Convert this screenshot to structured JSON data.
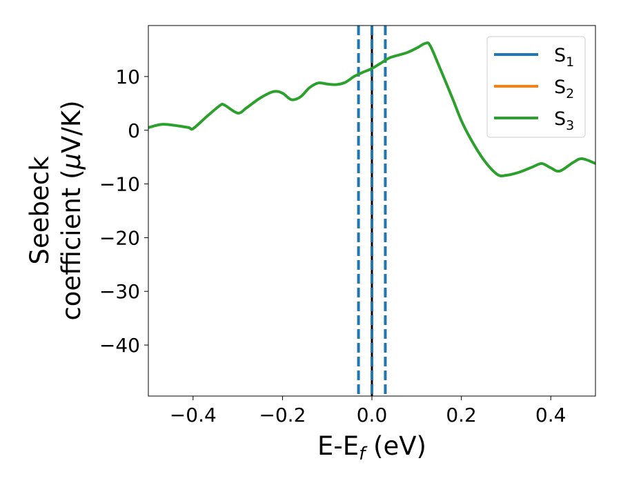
{
  "chart_data": {
    "type": "line",
    "title": "",
    "xlabel": {
      "main": "E-E",
      "sub": "f",
      "tail": " (eV)"
    },
    "ylabel": {
      "line1": "Seebeck",
      "line2_pre": "coefficient  (",
      "line2_mu": "μ",
      "line2_post": "V/K)"
    },
    "xlim": [
      -0.5,
      0.5
    ],
    "ylim": [
      -49.5,
      19.5
    ],
    "xticks": [
      -0.4,
      -0.2,
      0.0,
      0.2,
      0.4
    ],
    "xtick_labels": [
      "−0.4",
      "−0.2",
      "0.0",
      "0.2",
      "0.4"
    ],
    "yticks": [
      10,
      0,
      -10,
      -20,
      -30,
      -40
    ],
    "ytick_labels": [
      "10",
      "0",
      "−10",
      "−20",
      "−30",
      "−40"
    ],
    "grid": false,
    "legend_position": "top-right",
    "vertical_lines": [
      {
        "x": 0.0,
        "color": "#000000",
        "style": "solid"
      },
      {
        "x": -0.03,
        "color": "#1f77b4",
        "style": "dashed"
      },
      {
        "x": 0.0,
        "color": "#1f77b4",
        "style": "dashed"
      },
      {
        "x": 0.03,
        "color": "#1f77b4",
        "style": "dashed"
      }
    ],
    "legend": [
      {
        "base": "S",
        "sub": "1",
        "color": "#1f77b4"
      },
      {
        "base": "S",
        "sub": "2",
        "color": "#ff7f0e"
      },
      {
        "base": "S",
        "sub": "3",
        "color": "#2ca02c"
      }
    ],
    "series": [
      {
        "name": "S3",
        "color": "#2ca02c",
        "x": [
          -0.5,
          -0.47,
          -0.44,
          -0.41,
          -0.4,
          -0.37,
          -0.34,
          -0.33,
          -0.3,
          -0.28,
          -0.25,
          -0.22,
          -0.2,
          -0.18,
          -0.16,
          -0.14,
          -0.12,
          -0.1,
          -0.08,
          -0.06,
          -0.04,
          -0.02,
          0.0,
          0.02,
          0.04,
          0.06,
          0.08,
          0.1,
          0.12,
          0.13,
          0.15,
          0.18,
          0.2,
          0.22,
          0.25,
          0.28,
          0.3,
          0.33,
          0.36,
          0.38,
          0.4,
          0.42,
          0.45,
          0.47,
          0.5
        ],
        "values": [
          0.5,
          1.1,
          0.9,
          0.5,
          0.3,
          2.5,
          4.6,
          4.7,
          3.2,
          4.2,
          6.0,
          7.2,
          6.9,
          5.7,
          6.2,
          7.9,
          8.8,
          8.6,
          8.5,
          8.9,
          10.0,
          10.8,
          11.5,
          12.5,
          13.5,
          14.0,
          14.5,
          15.3,
          16.2,
          15.8,
          12.0,
          6.0,
          1.8,
          -1.5,
          -5.5,
          -8.2,
          -8.4,
          -7.8,
          -6.8,
          -6.2,
          -7.0,
          -7.6,
          -6.0,
          -5.3,
          -6.2
        ]
      }
    ]
  }
}
